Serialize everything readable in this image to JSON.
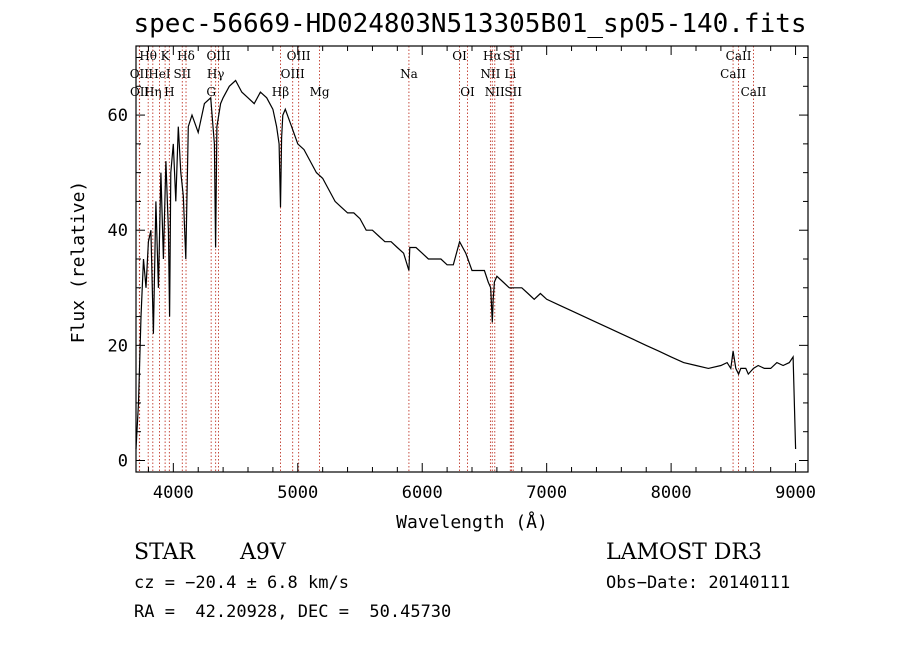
{
  "chart_data": {
    "type": "line",
    "title": "spec-56669-HD024803N513305B01_sp05-140.fits",
    "xlabel": "Wavelength (Å)",
    "ylabel": "Flux (relative)",
    "xlim": [
      3700,
      9100
    ],
    "ylim": [
      -2,
      72
    ],
    "x_ticks": [
      4000,
      5000,
      6000,
      7000,
      8000,
      9000
    ],
    "y_ticks": [
      0,
      20,
      40,
      60
    ],
    "series": [
      {
        "name": "spectrum",
        "x": [
          3700,
          3720,
          3740,
          3760,
          3780,
          3800,
          3820,
          3840,
          3860,
          3880,
          3900,
          3920,
          3940,
          3960,
          3970,
          3980,
          4000,
          4020,
          4040,
          4060,
          4080,
          4100,
          4120,
          4150,
          4200,
          4250,
          4300,
          4330,
          4340,
          4350,
          4380,
          4400,
          4450,
          4500,
          4550,
          4600,
          4650,
          4700,
          4750,
          4800,
          4830,
          4850,
          4861,
          4870,
          4880,
          4900,
          4950,
          5000,
          5050,
          5100,
          5150,
          5200,
          5250,
          5300,
          5350,
          5400,
          5450,
          5500,
          5550,
          5600,
          5650,
          5700,
          5750,
          5800,
          5850,
          5893,
          5900,
          5950,
          6000,
          6050,
          6100,
          6150,
          6200,
          6250,
          6300,
          6350,
          6400,
          6450,
          6500,
          6530,
          6550,
          6563,
          6570,
          6580,
          6600,
          6650,
          6700,
          6750,
          6800,
          6850,
          6900,
          6950,
          7000,
          7100,
          7200,
          7300,
          7400,
          7500,
          7600,
          7700,
          7800,
          7900,
          8000,
          8100,
          8200,
          8300,
          8400,
          8450,
          8480,
          8498,
          8520,
          8542,
          8560,
          8600,
          8620,
          8662,
          8700,
          8750,
          8800,
          8850,
          8900,
          8950,
          8980,
          9000
        ],
        "values": [
          2,
          10,
          25,
          35,
          30,
          38,
          40,
          22,
          45,
          30,
          50,
          35,
          52,
          40,
          25,
          50,
          55,
          45,
          58,
          50,
          46,
          35,
          58,
          60,
          57,
          62,
          63,
          55,
          37,
          58,
          62,
          63,
          65,
          66,
          64,
          63,
          62,
          64,
          63,
          61,
          58,
          55,
          44,
          56,
          60,
          61,
          58,
          55,
          54,
          52,
          50,
          49,
          47,
          45,
          44,
          43,
          43,
          42,
          40,
          40,
          39,
          38,
          38,
          37,
          36,
          33,
          37,
          37,
          36,
          35,
          35,
          35,
          34,
          34,
          38,
          36,
          33,
          33,
          33,
          31,
          30,
          24,
          28,
          31,
          32,
          31,
          30,
          30,
          30,
          29,
          28,
          29,
          28,
          27,
          26,
          25,
          24,
          23,
          22,
          21,
          20,
          19,
          18,
          17,
          16.5,
          16,
          16.5,
          17,
          16,
          19,
          16,
          15,
          16,
          16,
          15,
          16,
          16.5,
          16,
          16,
          17,
          16.5,
          17,
          18,
          2
        ]
      }
    ],
    "lines": [
      {
        "label": "Hθ",
        "wl": 3798,
        "row": 0
      },
      {
        "label": "OII",
        "wl": 3727,
        "row": 1
      },
      {
        "label": "OII",
        "wl": 3729,
        "row": 2
      },
      {
        "label": "Hη",
        "wl": 3835,
        "row": 2
      },
      {
        "label": "HeI",
        "wl": 3889,
        "row": 1
      },
      {
        "label": "K",
        "wl": 3934,
        "row": 0
      },
      {
        "label": "SII",
        "wl": 4072,
        "row": 1
      },
      {
        "label": "H",
        "wl": 3968,
        "row": 2
      },
      {
        "label": "Hδ",
        "wl": 4102,
        "row": 0
      },
      {
        "label": "OIII",
        "wl": 4363,
        "row": 0
      },
      {
        "label": "Hγ",
        "wl": 4340,
        "row": 1
      },
      {
        "label": "G",
        "wl": 4304,
        "row": 2
      },
      {
        "label": "OIII",
        "wl": 5007,
        "row": 0
      },
      {
        "label": "OIII",
        "wl": 4959,
        "row": 1
      },
      {
        "label": "Hβ",
        "wl": 4861,
        "row": 2
      },
      {
        "label": "Mg",
        "wl": 5175,
        "row": 2
      },
      {
        "label": "Na",
        "wl": 5893,
        "row": 1
      },
      {
        "label": "OI",
        "wl": 6300,
        "row": 0
      },
      {
        "label": "OI",
        "wl": 6364,
        "row": 2
      },
      {
        "label": "Hα",
        "wl": 6563,
        "row": 0
      },
      {
        "label": "SII",
        "wl": 6717,
        "row": 0
      },
      {
        "label": "NII",
        "wl": 6548,
        "row": 1
      },
      {
        "label": "Li",
        "wl": 6708,
        "row": 1
      },
      {
        "label": "NII",
        "wl": 6583,
        "row": 2
      },
      {
        "label": "SII",
        "wl": 6731,
        "row": 2
      },
      {
        "label": "CaII",
        "wl": 8542,
        "row": 0
      },
      {
        "label": "CaII",
        "wl": 8498,
        "row": 1
      },
      {
        "label": "CaII",
        "wl": 8662,
        "row": 2
      }
    ]
  },
  "info": {
    "object_class": "STAR",
    "subclass": "A9V",
    "survey": "LAMOST DR3",
    "redshift": "cz = −20.4 ± 6.8 km/s",
    "obs_date": "Obs−Date: 20140111",
    "coords": "RA =  42.20928, DEC =  50.45730"
  }
}
